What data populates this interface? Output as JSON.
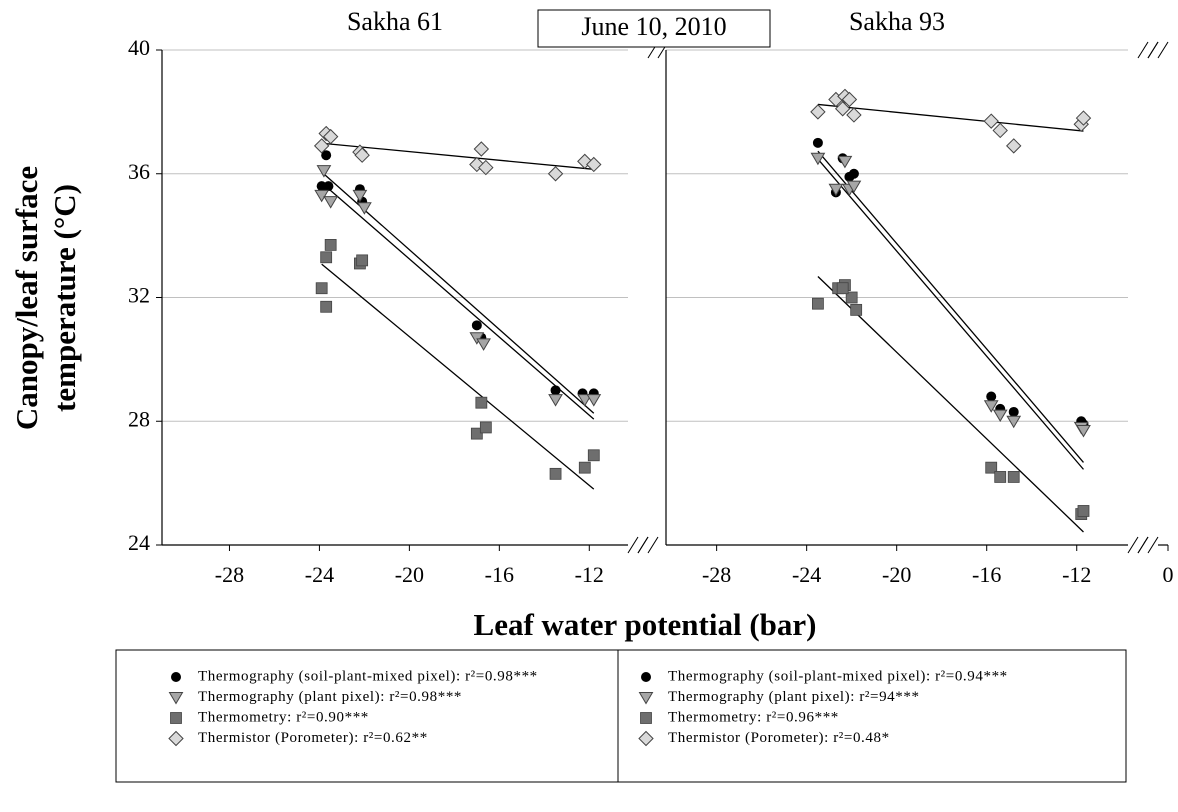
{
  "chart_data": [
    {
      "type": "scatter",
      "title": "Sakha 61",
      "annotation": "June 10, 2010",
      "ylabel": [
        "Canopy/leaf surface",
        "temperature (°C)"
      ],
      "xlabel": "Leaf water potential (bar)",
      "xlim": [
        -31,
        -8.5
      ],
      "xticks": [
        -28,
        -24,
        -20,
        -16,
        -12
      ],
      "ylim": [
        24,
        40
      ],
      "yticks": [
        24,
        28,
        32,
        36,
        40
      ],
      "grid": true,
      "series": [
        {
          "name": "Thermography (soil-plant-mixed pixel): r²=0.98***",
          "marker": "circle",
          "color": "#000000",
          "x": [
            -23.7,
            -23.6,
            -23.9,
            -22.2,
            -22.1,
            -17.0,
            -16.8,
            -13.5,
            -12.3,
            -11.8
          ],
          "values": [
            36.6,
            35.6,
            35.6,
            35.5,
            35.1,
            31.1,
            30.7,
            29.0,
            28.9,
            28.9
          ]
        },
        {
          "name": "Thermography (plant pixel): r²=0.98***",
          "marker": "triangle",
          "color": "#a6a6a6",
          "x": [
            -23.8,
            -23.9,
            -23.5,
            -22.2,
            -22.0,
            -17.0,
            -16.7,
            -13.5,
            -12.2,
            -11.8
          ],
          "values": [
            36.1,
            35.3,
            35.1,
            35.3,
            34.9,
            30.7,
            30.5,
            28.7,
            28.7,
            28.7
          ]
        },
        {
          "name": "Thermometry: r²=0.90***",
          "marker": "square",
          "color": "#6e6e6e",
          "x": [
            -23.9,
            -23.7,
            -23.5,
            -23.7,
            -22.2,
            -22.1,
            -17.0,
            -16.8,
            -16.6,
            -13.5,
            -12.2,
            -11.8
          ],
          "values": [
            32.3,
            33.3,
            33.7,
            31.7,
            33.1,
            33.2,
            27.6,
            28.6,
            27.8,
            26.3,
            26.5,
            26.9
          ]
        },
        {
          "name": "Thermistor (Porometer): r²=0.62**",
          "marker": "diamond",
          "color": "#d9d9d9",
          "x": [
            -23.9,
            -23.7,
            -23.5,
            -22.2,
            -22.1,
            -17.0,
            -16.8,
            -16.6,
            -13.5,
            -12.2,
            -11.8
          ],
          "values": [
            36.9,
            37.3,
            37.2,
            36.7,
            36.6,
            36.3,
            36.8,
            36.2,
            36.0,
            36.4,
            36.3
          ]
        }
      ]
    },
    {
      "type": "scatter",
      "title": "Sakha 93",
      "xlim": [
        -30.25,
        0
      ],
      "x_break": [
        -10.5,
        -1
      ],
      "xticks": [
        -28,
        -24,
        -20,
        -16,
        -12,
        0
      ],
      "ylim": [
        24,
        40
      ],
      "yticks": [
        24,
        28,
        32,
        36,
        40
      ],
      "grid": true,
      "series": [
        {
          "name": "Thermography (soil-plant-mixed pixel): r²=0.94***",
          "marker": "circle",
          "color": "#000000",
          "x": [
            -23.5,
            -22.7,
            -22.4,
            -22.1,
            -21.9,
            -15.8,
            -15.4,
            -14.8,
            -11.8,
            -11.7
          ],
          "values": [
            37.0,
            35.4,
            36.5,
            35.9,
            36.0,
            28.8,
            28.4,
            28.3,
            28.0,
            27.9
          ]
        },
        {
          "name": "Thermography (plant pixel): r²=94***",
          "marker": "triangle",
          "color": "#a6a6a6",
          "x": [
            -23.5,
            -22.7,
            -22.3,
            -22.1,
            -21.9,
            -15.8,
            -15.4,
            -14.8,
            -11.8,
            -11.7
          ],
          "values": [
            36.5,
            35.5,
            36.4,
            35.5,
            35.6,
            28.5,
            28.2,
            28.0,
            27.8,
            27.7
          ]
        },
        {
          "name": "Thermometry: r²=0.96***",
          "marker": "square",
          "color": "#6e6e6e",
          "x": [
            -23.5,
            -22.6,
            -22.3,
            -22.0,
            -21.8,
            -22.4,
            -15.8,
            -15.4,
            -14.8,
            -11.8,
            -11.7
          ],
          "values": [
            31.8,
            32.3,
            32.4,
            32.0,
            31.6,
            32.3,
            26.5,
            26.2,
            26.2,
            25.0,
            25.1
          ]
        },
        {
          "name": "Thermistor (Porometer): r²=0.48*",
          "marker": "diamond",
          "color": "#d9d9d9",
          "x": [
            -23.5,
            -22.7,
            -22.4,
            -22.3,
            -22.1,
            -21.9,
            -15.8,
            -15.4,
            -14.8,
            -11.8,
            -11.7
          ],
          "values": [
            38.0,
            38.4,
            38.1,
            38.5,
            38.4,
            37.9,
            37.7,
            37.4,
            36.9,
            37.6,
            37.8
          ]
        }
      ]
    }
  ]
}
